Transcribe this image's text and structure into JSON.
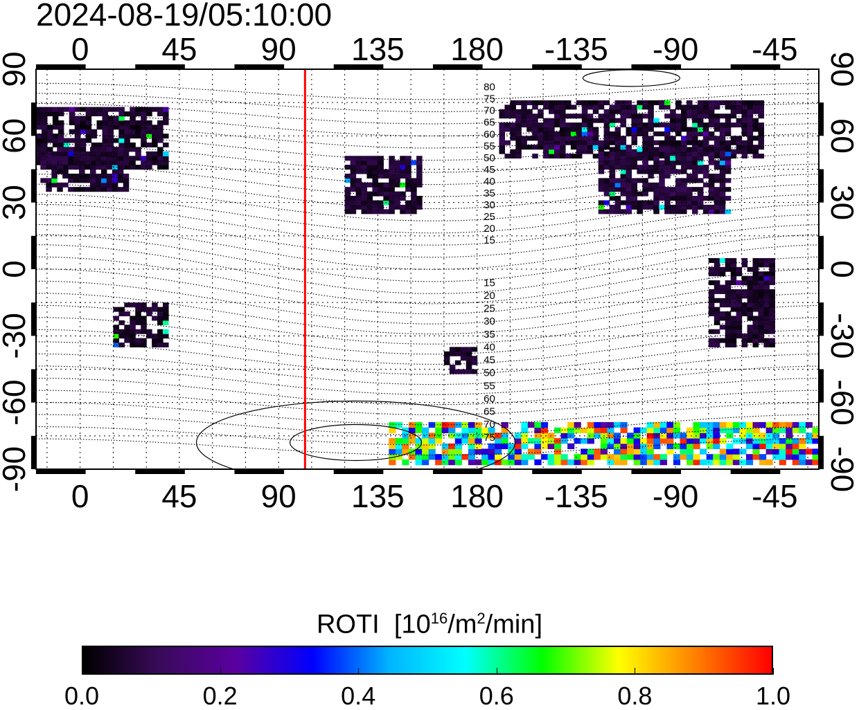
{
  "timestamp": "2024-08-19/05:10:00",
  "map": {
    "projection": "cylindrical",
    "lon_ticks_top": [
      "0",
      "45",
      "90",
      "135",
      "180",
      "-135",
      "-90",
      "-45"
    ],
    "lon_ticks_bottom": [
      "0",
      "45",
      "90",
      "135",
      "180",
      "-135",
      "-90",
      "-45"
    ],
    "lat_ticks_left": [
      "90",
      "60",
      "30",
      "0",
      "-30",
      "-60",
      "-90"
    ],
    "lat_ticks_right": [
      "90",
      "60",
      "30",
      "0",
      "-30",
      "-60",
      "-90"
    ],
    "lon_tick_values": [
      0,
      45,
      90,
      135,
      180,
      225,
      270,
      315
    ],
    "lat_tick_values": [
      90,
      60,
      30,
      0,
      -30,
      -60,
      -90
    ],
    "lon_range": [
      -20,
      335
    ],
    "lat_range": [
      -90,
      90
    ],
    "grid": true,
    "terminator_line": {
      "lon": 102,
      "color": "#ff0000"
    },
    "contour_labels_north": [
      "80",
      "75",
      "70",
      "65",
      "60",
      "55",
      "50",
      "45",
      "40",
      "35",
      "30",
      "25",
      "20",
      "15"
    ],
    "contour_labels_south": [
      "15",
      "20",
      "25",
      "30",
      "35",
      "40",
      "45",
      "50",
      "55",
      "60",
      "65",
      "70",
      "75"
    ]
  },
  "colorbar": {
    "title": "ROTI",
    "unit_prefix": "[10",
    "unit_exp1": "16",
    "unit_mid": "/m",
    "unit_exp2": "2",
    "unit_suffix": "/min]",
    "ticks": [
      "0.0",
      "0.2",
      "0.4",
      "0.6",
      "0.8",
      "1.0"
    ],
    "tick_values": [
      0.0,
      0.2,
      0.4,
      0.6,
      0.8,
      1.0
    ],
    "range": [
      0.0,
      1.0
    ],
    "gradient": [
      "#000000",
      "#3a0a5a",
      "#5a00a0",
      "#0000ff",
      "#00b4ff",
      "#00ffff",
      "#00ff00",
      "#ffff00",
      "#ff8000",
      "#ff0000"
    ]
  },
  "chart_data": {
    "type": "heatmap",
    "title": "2024-08-19/05:10:00",
    "xlabel": "",
    "ylabel": "",
    "colorbar_label": "ROTI [10^16/m^2/min]",
    "xlim": [
      -20,
      335
    ],
    "ylim": [
      -90,
      90
    ],
    "clim": [
      0.0,
      1.0
    ],
    "regions": [
      {
        "lon": [
          -20,
          40
        ],
        "lat": [
          45,
          72
        ],
        "value": 0.05
      },
      {
        "lon": [
          -18,
          20
        ],
        "lat": [
          35,
          55
        ],
        "value": 0.06
      },
      {
        "lon": [
          15,
          40
        ],
        "lat": [
          -35,
          -15
        ],
        "value": 0.05
      },
      {
        "lon": [
          120,
          155
        ],
        "lat": [
          25,
          50
        ],
        "value": 0.06
      },
      {
        "lon": [
          165,
          178
        ],
        "lat": [
          -47,
          -35
        ],
        "value": 0.06
      },
      {
        "lon": [
          190,
          310
        ],
        "lat": [
          50,
          75
        ],
        "value": 0.06
      },
      {
        "lon": [
          235,
          295
        ],
        "lat": [
          25,
          55
        ],
        "value": 0.07
      },
      {
        "lon": [
          285,
          315
        ],
        "lat": [
          -35,
          5
        ],
        "value": 0.05
      },
      {
        "lon": [
          140,
          335
        ],
        "lat": [
          -88,
          -70
        ],
        "value": 0.6
      }
    ]
  }
}
